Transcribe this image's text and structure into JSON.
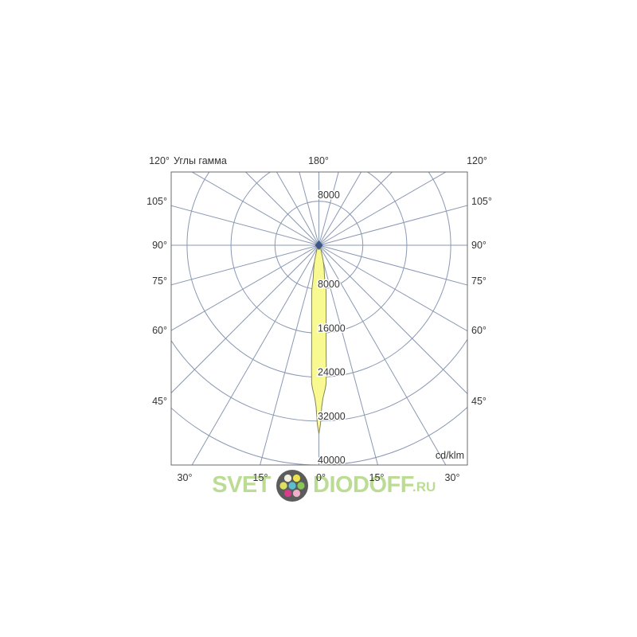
{
  "page": {
    "background": "#ffffff"
  },
  "chart_data": {
    "type": "line",
    "projection": "polar",
    "description": "Luminous intensity distribution curve (photometric polar diagram), 0° pointing down, narrow yellow beam lobe",
    "title": "Углы гамма",
    "units_label": "cd/klm",
    "grid": true,
    "grid_color": "#8a98b4",
    "border_color": "#6b6b6b",
    "label_color": "#333333",
    "center_marker_color": "#3d5786",
    "angle_axis": {
      "tick_step_deg": 15,
      "zero_direction": "down",
      "labels_top": [
        "120°",
        "180°",
        "120°"
      ],
      "labels_left": [
        "105°",
        "90°",
        "75°",
        "60°",
        "45°"
      ],
      "labels_right": [
        "105°",
        "90°",
        "75°",
        "60°",
        "45°"
      ],
      "labels_bottom": [
        "30°",
        "15°",
        "0°",
        "15°",
        "30°"
      ]
    },
    "radial_axis": {
      "ticks": [
        8000,
        16000,
        24000,
        32000,
        40000
      ],
      "tick_labels": [
        "8000",
        "16000",
        "24000",
        "32000",
        "40000"
      ],
      "step": 8000,
      "max_down": 40000,
      "units": "cd/klm"
    },
    "series": [
      {
        "name": "Углы гамма",
        "symmetric_about_0deg": true,
        "fill": "#f9f992",
        "stroke": "#83835b",
        "peak_cd_per_klm": 34300,
        "points_gamma_deg_vs_cd_per_klm": [
          [
            0,
            34300
          ],
          [
            0.5,
            32600
          ],
          [
            1,
            29400
          ],
          [
            1.5,
            27900
          ],
          [
            2,
            27000
          ],
          [
            2.5,
            26200
          ],
          [
            3,
            25200
          ],
          [
            3.5,
            22000
          ],
          [
            4,
            18900
          ],
          [
            4.5,
            16800
          ],
          [
            5,
            15100
          ],
          [
            6,
            12600
          ],
          [
            7,
            10800
          ],
          [
            8,
            9400
          ],
          [
            9,
            8300
          ],
          [
            10,
            5950
          ],
          [
            11,
            5200
          ],
          [
            12,
            4700
          ],
          [
            14,
            3600
          ],
          [
            16,
            2700
          ],
          [
            18,
            1900
          ],
          [
            20,
            1400
          ],
          [
            24,
            900
          ],
          [
            28,
            600
          ],
          [
            35,
            350
          ],
          [
            45,
            180
          ],
          [
            60,
            80
          ],
          [
            75,
            30
          ],
          [
            90,
            0
          ]
        ]
      }
    ],
    "legend_position": "top-left"
  },
  "watermark": {
    "text_left": "SVET",
    "text_right": "DIODOFF",
    "suffix": ".RU",
    "text_color": "#b5d98a",
    "logo_bg": "#4b4b4b",
    "logo_dots": [
      "#f2efdf",
      "#e8e23f",
      "#dadc52",
      "#49b9c9",
      "#7cc243",
      "#d4267e",
      "#eba8c3"
    ]
  }
}
